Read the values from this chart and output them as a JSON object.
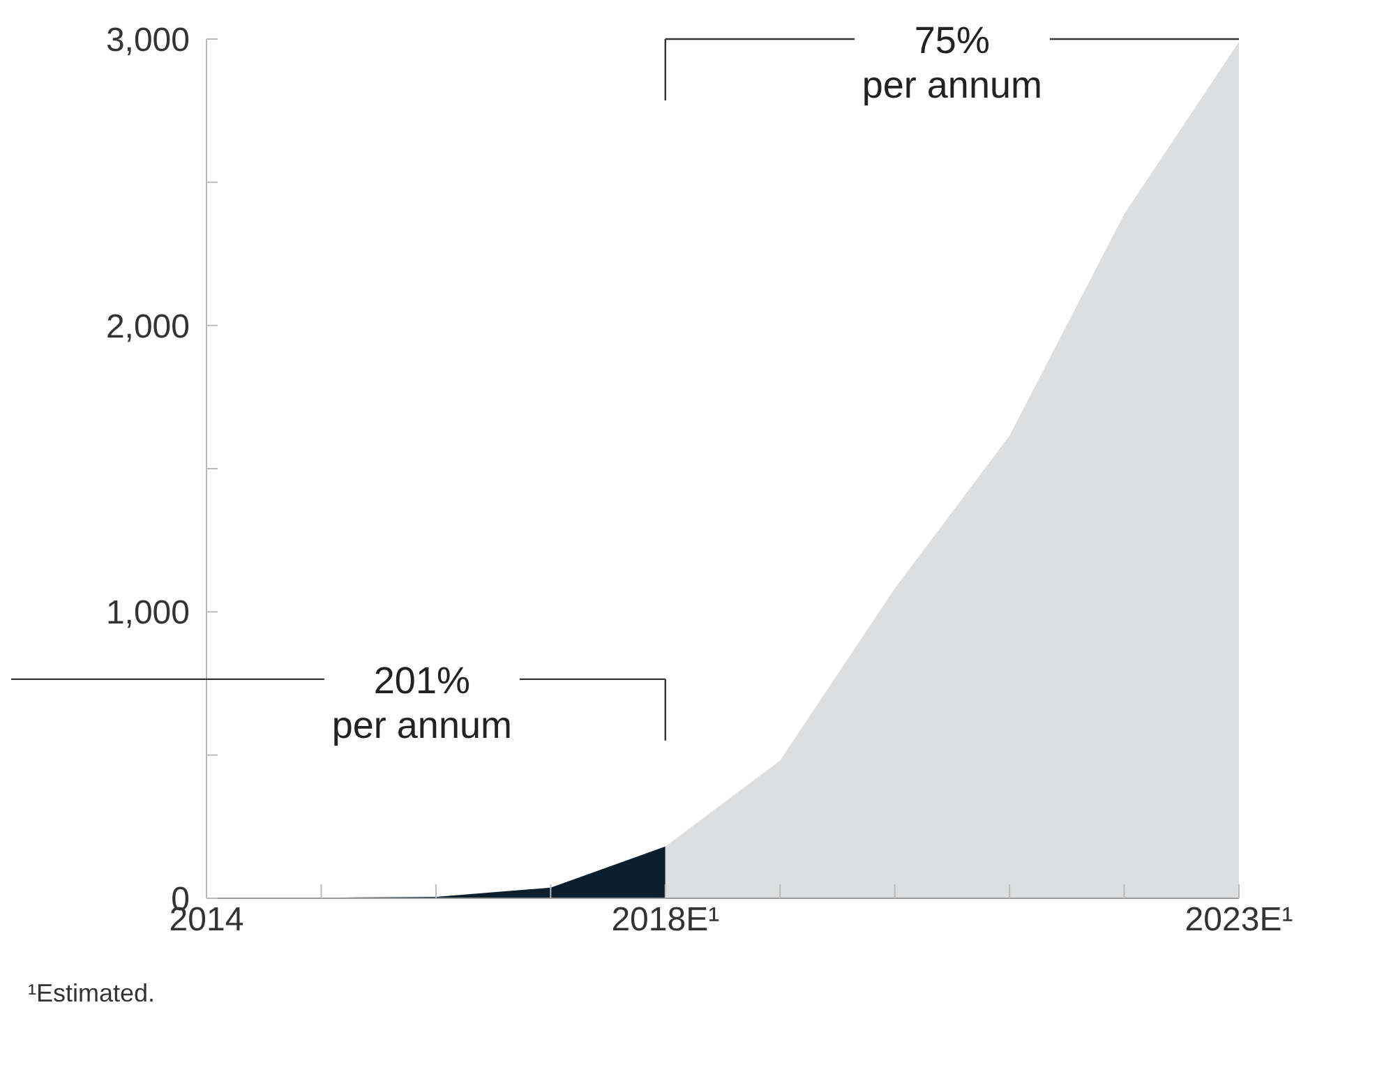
{
  "chart_data": {
    "type": "area",
    "x": [
      2014,
      2015,
      2016,
      2017,
      2018,
      2019,
      2020,
      2021,
      2022,
      2023
    ],
    "series": [
      {
        "color": "#0b1e2d",
        "values": [
          0,
          2,
          5,
          37,
          181,
          null,
          null,
          null,
          null,
          null
        ]
      },
      {
        "color": "#dcdee0",
        "values": [
          null,
          null,
          null,
          null,
          181,
          481,
          1082,
          1615,
          2389,
          2990
        ]
      }
    ],
    "xlim": [
      2014,
      2023
    ],
    "xticks": [
      2014,
      {
        "value": 2015,
        "label": null
      },
      {
        "value": 2016,
        "label": null
      },
      {
        "value": 2017,
        "label": null
      },
      {
        "value": 2018,
        "label": "2018E¹"
      },
      {
        "value": 2019,
        "label": null
      },
      {
        "value": 2020,
        "label": null
      },
      {
        "value": 2021,
        "label": null
      },
      {
        "value": 2022,
        "label": null
      },
      {
        "value": 2023,
        "label": "2023E¹"
      }
    ],
    "ylim": [
      0,
      3000
    ],
    "yticks": [
      0,
      {
        "value": 500,
        "label": null
      },
      {
        "value": 1000,
        "label": "1,000"
      },
      {
        "value": 1500,
        "label": null
      },
      {
        "value": 2000,
        "label": "2,000"
      },
      {
        "value": 2500,
        "label": null
      },
      {
        "value": 3000,
        "label": "3,000"
      }
    ],
    "grid": false,
    "legend": false,
    "annotations": [
      "201%\nper annum",
      "75%\nper annum",
      "¹Estimated."
    ]
  }
}
